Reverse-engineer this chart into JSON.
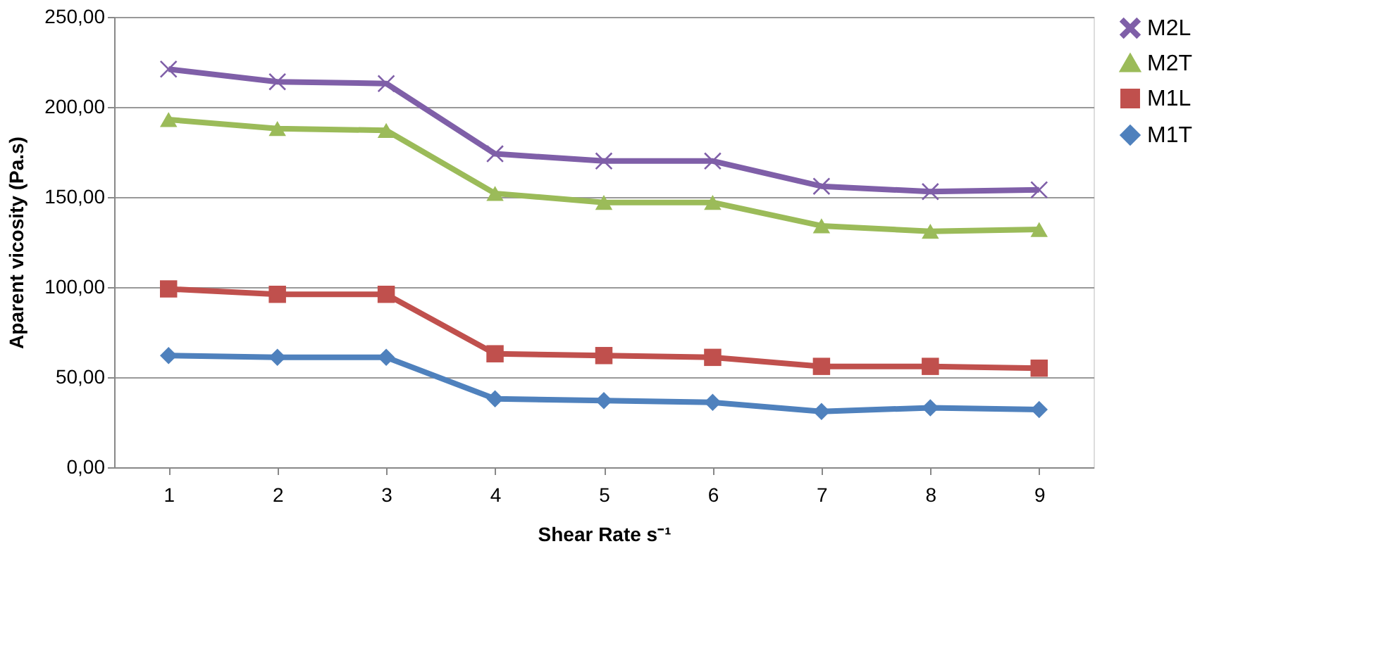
{
  "chart_data": {
    "type": "line",
    "xlabel": "Shear Rate s⁻¹",
    "ylabel": "Aparent vicosity (Pa.s)",
    "categories": [
      "1",
      "2",
      "3",
      "4",
      "5",
      "6",
      "7",
      "8",
      "9"
    ],
    "series": [
      {
        "name": "M2L",
        "color": "#7f5fa8",
        "marker": "cross",
        "values": [
          221,
          214,
          213,
          174,
          170,
          170,
          156,
          153,
          154
        ]
      },
      {
        "name": "M2T",
        "color": "#9bbb59",
        "marker": "triangle",
        "values": [
          193,
          188,
          187,
          152,
          147,
          147,
          134,
          131,
          132
        ]
      },
      {
        "name": "M1L",
        "color": "#c0504d",
        "marker": "square",
        "values": [
          99,
          96,
          96,
          63,
          62,
          61,
          56,
          56,
          55
        ]
      },
      {
        "name": "M1T",
        "color": "#4f81bd",
        "marker": "diamond",
        "values": [
          62,
          61,
          61,
          38,
          37,
          36,
          31,
          33,
          32
        ]
      }
    ],
    "ylim": [
      0,
      250
    ],
    "yticks": [
      {
        "value": 0,
        "label": "0,00"
      },
      {
        "value": 50,
        "label": "50,00"
      },
      {
        "value": 100,
        "label": "100,00"
      },
      {
        "value": 150,
        "label": "150,00"
      },
      {
        "value": 200,
        "label": "200,00"
      },
      {
        "value": 250,
        "label": "250,00"
      }
    ],
    "grid": "y",
    "legend": "right",
    "line_style": "solid"
  }
}
